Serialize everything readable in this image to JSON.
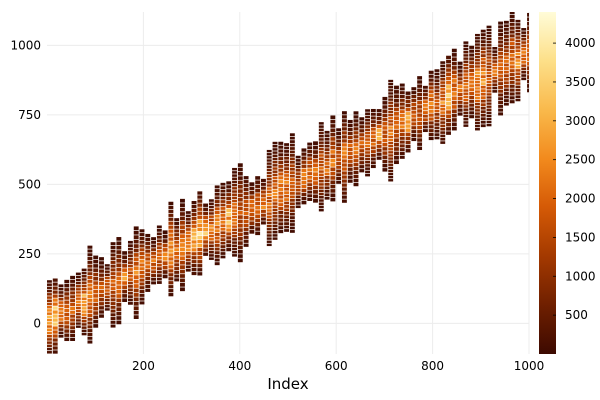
{
  "chart_data": {
    "type": "heatmap",
    "title": "",
    "xlabel": "Index",
    "ylabel": "",
    "xlim": [
      0,
      1000
    ],
    "ylim": [
      -110,
      1120
    ],
    "xticks": [
      200,
      400,
      600,
      800,
      1000
    ],
    "yticks": [
      0,
      250,
      500,
      750,
      1000
    ],
    "colorbar": {
      "min": 0,
      "max": 4400,
      "ticks": [
        500,
        1000,
        1500,
        2000,
        2500,
        3000,
        3500,
        4000
      ],
      "colormap": [
        "#3d0a01",
        "#6e1f00",
        "#a53a00",
        "#d55a06",
        "#f28a1d",
        "#f9b84a",
        "#fde08a",
        "#fffcd8"
      ]
    },
    "band": {
      "center_intercept": 8,
      "center_slope": 0.965,
      "half_width_range": [
        80,
        180
      ],
      "column_width": 12,
      "peak_count": 4400
    },
    "hotspots": [
      {
        "x": 15,
        "y": 15,
        "value": 4200
      },
      {
        "x": 75,
        "y": 70,
        "value": 3600
      },
      {
        "x": 160,
        "y": 165,
        "value": 2800
      },
      {
        "x": 255,
        "y": 245,
        "value": 3400
      },
      {
        "x": 300,
        "y": 295,
        "value": 3800
      },
      {
        "x": 325,
        "y": 315,
        "value": 4400
      },
      {
        "x": 380,
        "y": 380,
        "value": 3500
      },
      {
        "x": 450,
        "y": 450,
        "value": 2800
      },
      {
        "x": 540,
        "y": 530,
        "value": 2600
      },
      {
        "x": 620,
        "y": 600,
        "value": 2600
      },
      {
        "x": 690,
        "y": 680,
        "value": 3000
      },
      {
        "x": 750,
        "y": 735,
        "value": 3200
      },
      {
        "x": 835,
        "y": 830,
        "value": 3800
      },
      {
        "x": 900,
        "y": 880,
        "value": 3400
      },
      {
        "x": 975,
        "y": 960,
        "value": 3000
      }
    ]
  }
}
